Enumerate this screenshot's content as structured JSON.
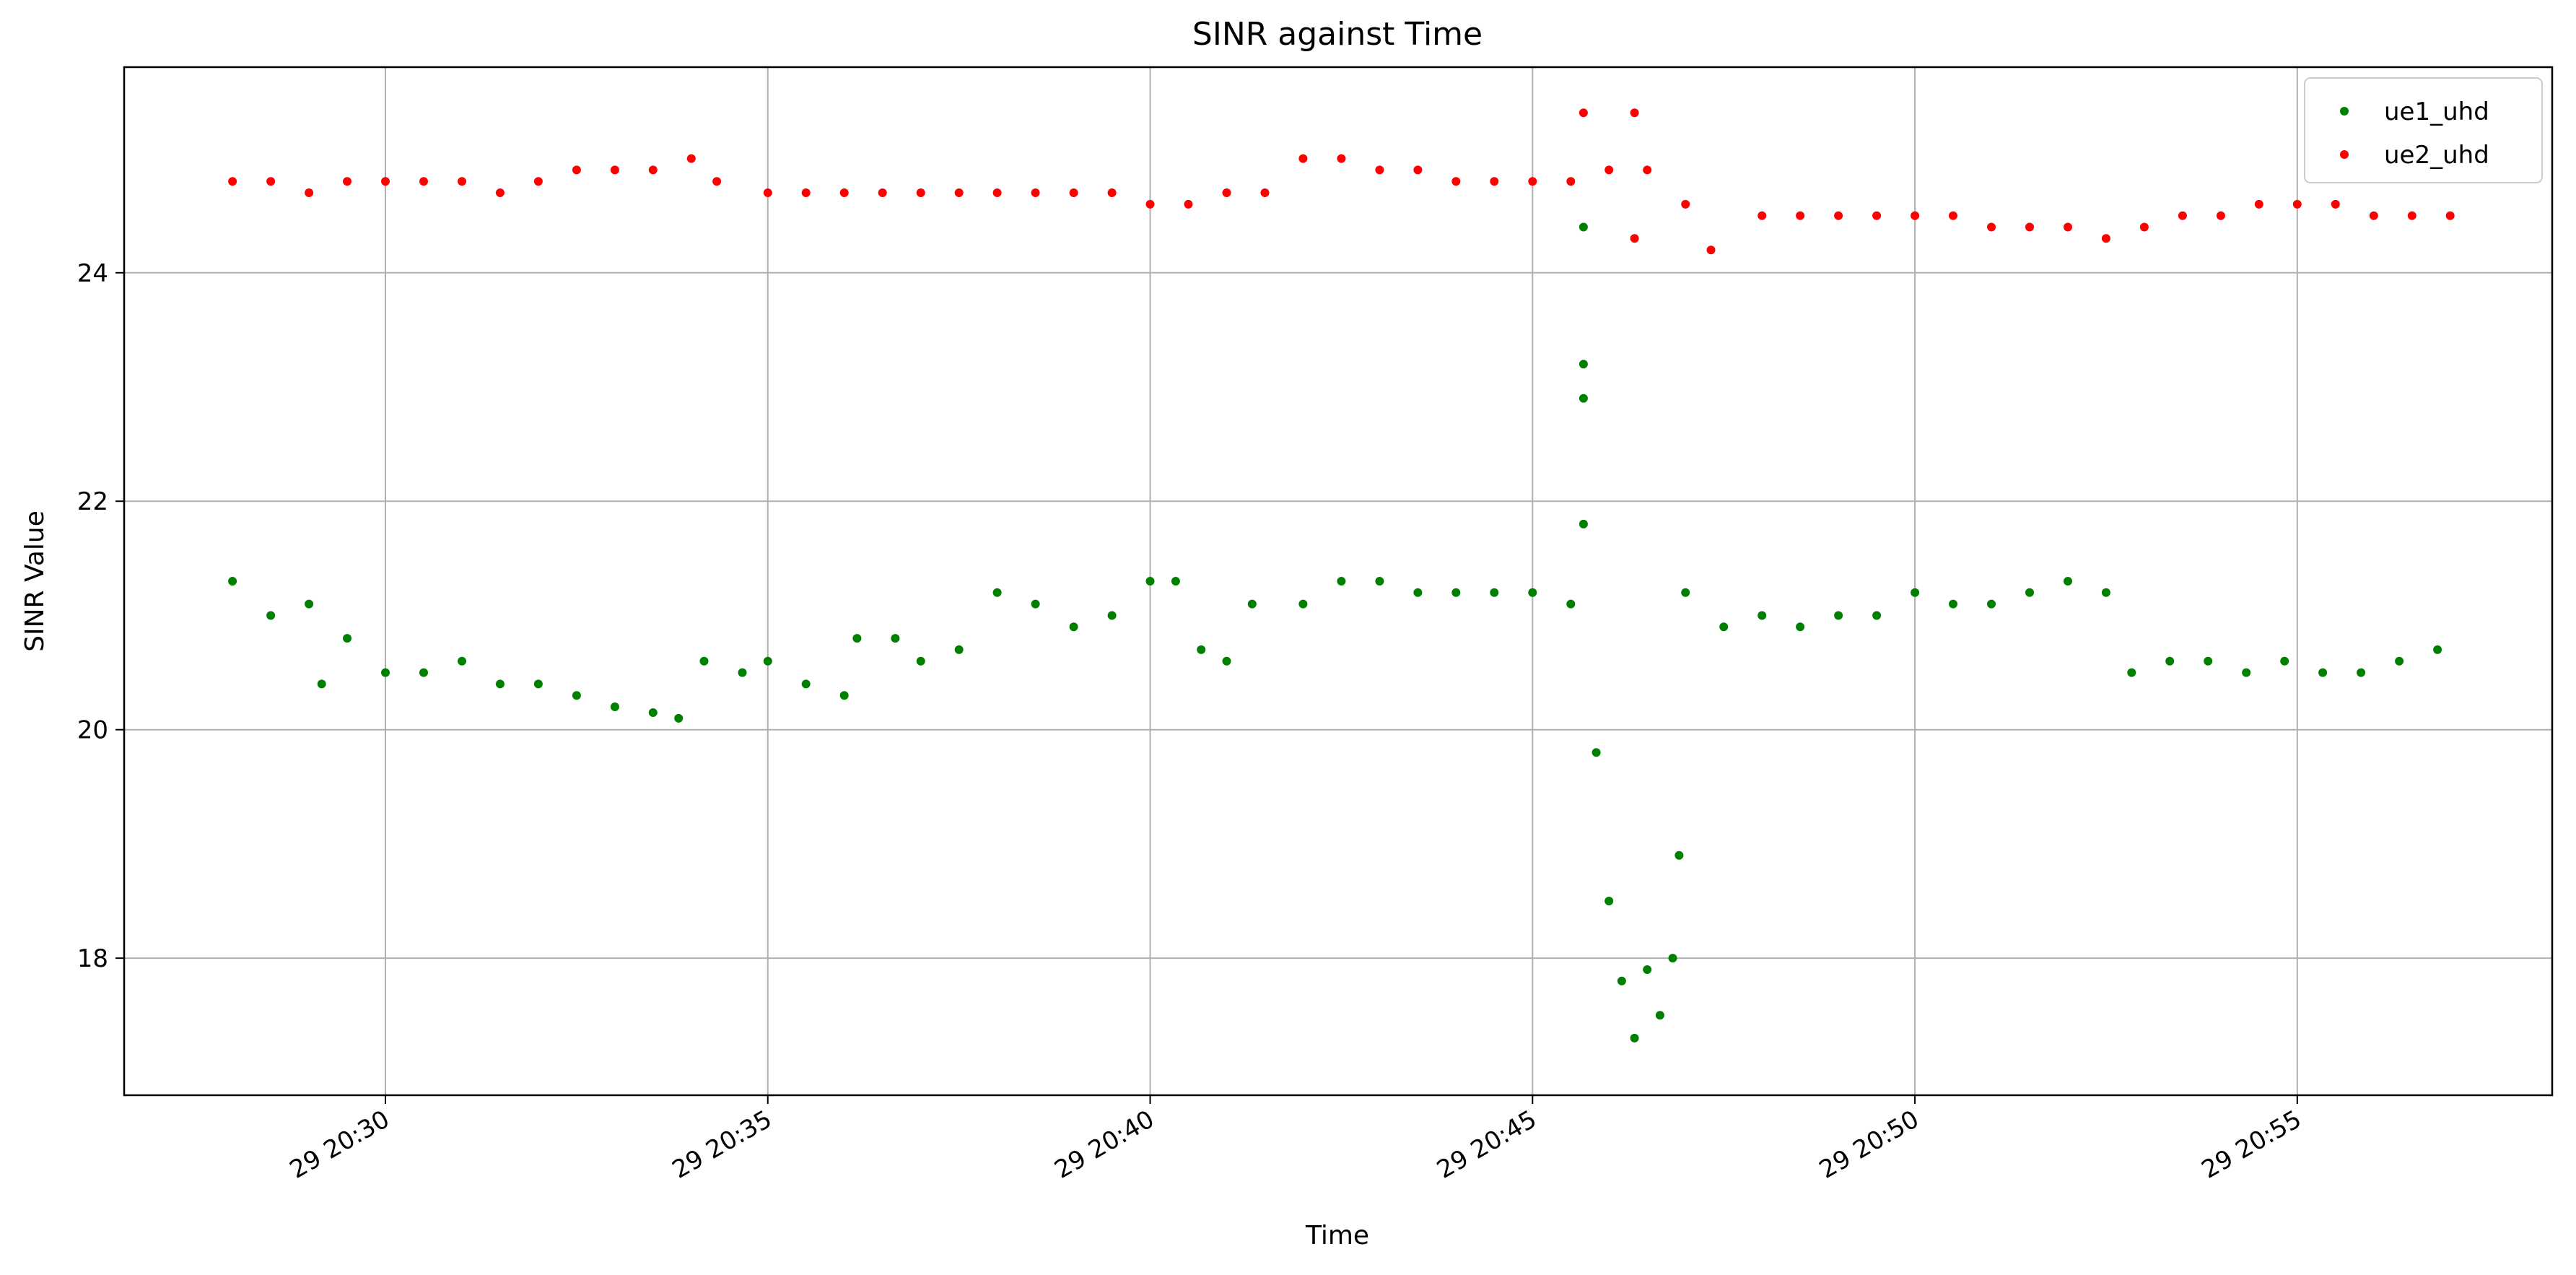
{
  "chart_data": {
    "type": "scatter",
    "title": "SINR against Time",
    "xlabel": "Time",
    "ylabel": "SINR Value",
    "x_ticks": [
      "20:30",
      "20:35",
      "20:40",
      "20:45",
      "20:50",
      "20:55"
    ],
    "x_tick_labels": [
      "29 20:30",
      "29 20:35",
      "29 20:40",
      "29 20:45",
      "29 20:50",
      "29 20:55"
    ],
    "xlim": [
      "20:26:35",
      "20:58:20"
    ],
    "ylim": [
      16.8,
      25.8
    ],
    "y_ticks": [
      18,
      20,
      22,
      24
    ],
    "grid": true,
    "legend": "top-right",
    "series": [
      {
        "name": "ue1_uhd",
        "color": "#008000",
        "marker": "circle",
        "points": [
          [
            "20:28:00",
            21.3
          ],
          [
            "20:28:30",
            21.0
          ],
          [
            "20:29:00",
            21.1
          ],
          [
            "20:29:10",
            20.4
          ],
          [
            "20:29:30",
            20.8
          ],
          [
            "20:30:00",
            20.5
          ],
          [
            "20:30:30",
            20.5
          ],
          [
            "20:31:00",
            20.6
          ],
          [
            "20:31:30",
            20.4
          ],
          [
            "20:32:00",
            20.4
          ],
          [
            "20:32:30",
            20.3
          ],
          [
            "20:33:00",
            20.2
          ],
          [
            "20:33:30",
            20.15
          ],
          [
            "20:33:50",
            20.1
          ],
          [
            "20:34:10",
            20.6
          ],
          [
            "20:34:40",
            20.5
          ],
          [
            "20:35:00",
            20.6
          ],
          [
            "20:35:30",
            20.4
          ],
          [
            "20:36:00",
            20.3
          ],
          [
            "20:36:10",
            20.8
          ],
          [
            "20:36:40",
            20.8
          ],
          [
            "20:37:00",
            20.6
          ],
          [
            "20:37:30",
            20.7
          ],
          [
            "20:38:00",
            21.2
          ],
          [
            "20:38:30",
            21.1
          ],
          [
            "20:39:00",
            20.9
          ],
          [
            "20:39:30",
            21.0
          ],
          [
            "20:40:00",
            21.3
          ],
          [
            "20:40:20",
            21.3
          ],
          [
            "20:40:40",
            20.7
          ],
          [
            "20:41:00",
            20.6
          ],
          [
            "20:41:20",
            21.1
          ],
          [
            "20:42:00",
            21.1
          ],
          [
            "20:42:30",
            21.3
          ],
          [
            "20:43:00",
            21.3
          ],
          [
            "20:43:30",
            21.2
          ],
          [
            "20:44:00",
            21.2
          ],
          [
            "20:44:30",
            21.2
          ],
          [
            "20:45:00",
            21.2
          ],
          [
            "20:45:30",
            21.1
          ],
          [
            "20:45:40",
            21.8
          ],
          [
            "20:45:40",
            23.2
          ],
          [
            "20:45:40",
            22.9
          ],
          [
            "20:45:40",
            24.4
          ],
          [
            "20:45:50",
            19.8
          ],
          [
            "20:46:00",
            18.5
          ],
          [
            "20:46:10",
            17.8
          ],
          [
            "20:46:20",
            17.3
          ],
          [
            "20:46:30",
            17.9
          ],
          [
            "20:46:40",
            17.5
          ],
          [
            "20:46:50",
            18.0
          ],
          [
            "20:46:55",
            18.9
          ],
          [
            "20:47:00",
            21.2
          ],
          [
            "20:47:30",
            20.9
          ],
          [
            "20:48:00",
            21.0
          ],
          [
            "20:48:30",
            20.9
          ],
          [
            "20:49:00",
            21.0
          ],
          [
            "20:49:30",
            21.0
          ],
          [
            "20:50:00",
            21.2
          ],
          [
            "20:50:30",
            21.1
          ],
          [
            "20:51:00",
            21.1
          ],
          [
            "20:51:30",
            21.2
          ],
          [
            "20:52:00",
            21.3
          ],
          [
            "20:52:30",
            21.2
          ],
          [
            "20:52:50",
            20.5
          ],
          [
            "20:53:20",
            20.6
          ],
          [
            "20:53:50",
            20.6
          ],
          [
            "20:54:20",
            20.5
          ],
          [
            "20:54:50",
            20.6
          ],
          [
            "20:55:20",
            20.5
          ],
          [
            "20:55:50",
            20.5
          ],
          [
            "20:56:20",
            20.6
          ],
          [
            "20:56:50",
            20.7
          ]
        ]
      },
      {
        "name": "ue2_uhd",
        "color": "#ff0000",
        "marker": "circle",
        "points": [
          [
            "20:28:00",
            24.8
          ],
          [
            "20:28:30",
            24.8
          ],
          [
            "20:29:00",
            24.7
          ],
          [
            "20:29:30",
            24.8
          ],
          [
            "20:30:00",
            24.8
          ],
          [
            "20:30:30",
            24.8
          ],
          [
            "20:31:00",
            24.8
          ],
          [
            "20:31:30",
            24.7
          ],
          [
            "20:32:00",
            24.8
          ],
          [
            "20:32:30",
            24.9
          ],
          [
            "20:33:00",
            24.9
          ],
          [
            "20:33:30",
            24.9
          ],
          [
            "20:34:00",
            25.0
          ],
          [
            "20:34:20",
            24.8
          ],
          [
            "20:35:00",
            24.7
          ],
          [
            "20:35:30",
            24.7
          ],
          [
            "20:36:00",
            24.7
          ],
          [
            "20:36:30",
            24.7
          ],
          [
            "20:37:00",
            24.7
          ],
          [
            "20:37:30",
            24.7
          ],
          [
            "20:38:00",
            24.7
          ],
          [
            "20:38:30",
            24.7
          ],
          [
            "20:39:00",
            24.7
          ],
          [
            "20:39:30",
            24.7
          ],
          [
            "20:40:00",
            24.6
          ],
          [
            "20:40:30",
            24.6
          ],
          [
            "20:41:00",
            24.7
          ],
          [
            "20:41:30",
            24.7
          ],
          [
            "20:42:00",
            25.0
          ],
          [
            "20:42:30",
            25.0
          ],
          [
            "20:43:00",
            24.9
          ],
          [
            "20:43:30",
            24.9
          ],
          [
            "20:44:00",
            24.8
          ],
          [
            "20:44:30",
            24.8
          ],
          [
            "20:45:00",
            24.8
          ],
          [
            "20:45:30",
            24.8
          ],
          [
            "20:45:40",
            25.4
          ],
          [
            "20:46:00",
            24.9
          ],
          [
            "20:46:20",
            25.4
          ],
          [
            "20:46:20",
            24.3
          ],
          [
            "20:46:30",
            24.9
          ],
          [
            "20:47:00",
            24.6
          ],
          [
            "20:47:20",
            24.2
          ],
          [
            "20:48:00",
            24.5
          ],
          [
            "20:48:30",
            24.5
          ],
          [
            "20:49:00",
            24.5
          ],
          [
            "20:49:30",
            24.5
          ],
          [
            "20:50:00",
            24.5
          ],
          [
            "20:50:30",
            24.5
          ],
          [
            "20:51:00",
            24.4
          ],
          [
            "20:51:30",
            24.4
          ],
          [
            "20:52:00",
            24.4
          ],
          [
            "20:52:30",
            24.3
          ],
          [
            "20:53:00",
            24.4
          ],
          [
            "20:53:30",
            24.5
          ],
          [
            "20:54:00",
            24.5
          ],
          [
            "20:54:30",
            24.6
          ],
          [
            "20:55:00",
            24.6
          ],
          [
            "20:55:30",
            24.6
          ],
          [
            "20:56:00",
            24.5
          ],
          [
            "20:56:30",
            24.5
          ],
          [
            "20:57:00",
            24.5
          ]
        ]
      }
    ]
  }
}
